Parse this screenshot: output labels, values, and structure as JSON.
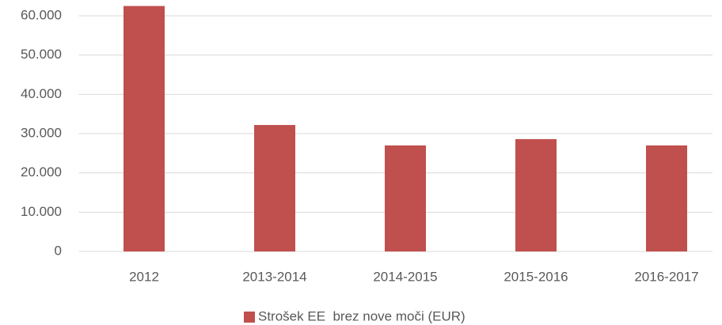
{
  "chart_data": {
    "type": "bar",
    "categories": [
      "2012",
      "2013-2014",
      "2014-2015",
      "2015-2016",
      "2016-2017"
    ],
    "series": [
      {
        "name": "Strošek EE  brez nove moči (EUR)",
        "color": "#c0504d",
        "values": [
          62500,
          32200,
          27000,
          28600,
          27000
        ]
      }
    ],
    "ylim": [
      0,
      60000
    ],
    "yticks": [
      0,
      {
        "value": 10000,
        "label": "10.000"
      },
      {
        "value": 20000,
        "label": "20.000"
      },
      {
        "value": 30000,
        "label": "30.000"
      },
      {
        "value": 40000,
        "label": "40.000"
      },
      {
        "value": 50000,
        "label": "50.000"
      },
      {
        "value": 60000,
        "label": "60.000"
      }
    ],
    "grid": true,
    "legend": "bottom"
  }
}
